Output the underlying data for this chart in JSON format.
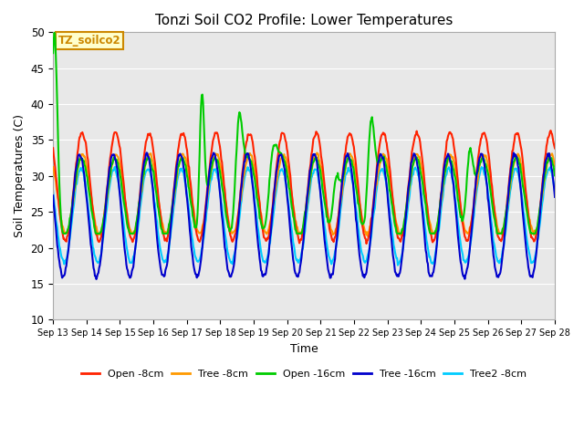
{
  "title": "Tonzi Soil CO2 Profile: Lower Temperatures",
  "xlabel": "Time",
  "ylabel": "Soil Temperatures (C)",
  "ylim": [
    10,
    50
  ],
  "bg_color": "#e8e8e8",
  "annotation_text": "TZ_soilco2",
  "annotation_bg": "#ffffcc",
  "annotation_border": "#cc8800",
  "series": {
    "Open -8cm": {
      "color": "#ff2200",
      "lw": 1.5
    },
    "Tree -8cm": {
      "color": "#ff9900",
      "lw": 1.5
    },
    "Open -16cm": {
      "color": "#00cc00",
      "lw": 1.5
    },
    "Tree -16cm": {
      "color": "#0000cc",
      "lw": 1.5
    },
    "Tree2 -8cm": {
      "color": "#00ccff",
      "lw": 1.5
    }
  },
  "xtick_labels": [
    "Sep 13",
    "Sep 14",
    "Sep 15",
    "Sep 16",
    "Sep 17",
    "Sep 18",
    "Sep 19",
    "Sep 20",
    "Sep 21",
    "Sep 22",
    "Sep 23",
    "Sep 24",
    "Sep 25",
    "Sep 26",
    "Sep 27",
    "Sep 28"
  ],
  "ytick_labels": [
    10,
    15,
    20,
    25,
    30,
    35,
    40,
    45,
    50
  ],
  "n_days": 15,
  "pts_per_day": 48,
  "open8_base": 28.5,
  "open8_amp": 7.5,
  "open8_phase": 0.62,
  "tree8_base": 27.5,
  "tree8_amp": 5.5,
  "tree8_phase": 0.63,
  "open16_base": 27.0,
  "open16_amp": 5.5,
  "open16_phase": 0.6,
  "tree16_base": 24.5,
  "tree16_amp": 8.5,
  "tree16_phase": 0.55,
  "tree2_base": 24.5,
  "tree2_amp": 6.5,
  "tree2_phase": 0.58,
  "green_spike_days": [
    0.05,
    4.45,
    5.55,
    6.55,
    8.45,
    9.5,
    12.45
  ],
  "green_spike_heights": [
    21,
    19,
    13,
    8,
    7,
    14,
    11
  ],
  "green_spike_widths": [
    0.08,
    0.07,
    0.1,
    0.12,
    0.1,
    0.1,
    0.1
  ]
}
